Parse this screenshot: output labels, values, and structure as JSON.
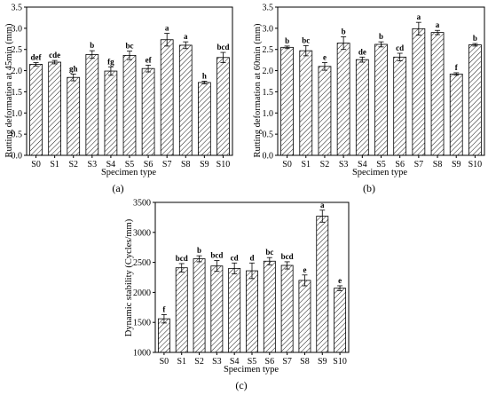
{
  "colors": {
    "bar_stroke": "#000000",
    "hatch": "#000000",
    "background": "#ffffff"
  },
  "chart_data": [
    {
      "type": "bar",
      "panel_label": "(a)",
      "xlabel": "Specimen type",
      "ylabel": "Rutting deformation at 45min (mm)",
      "ylim": [
        0,
        3.5
      ],
      "yticks": [
        "0.0",
        "0.5",
        "1.0",
        "1.5",
        "2.0",
        "2.5",
        "3.0",
        "3.5"
      ],
      "categories": [
        "S0",
        "S1",
        "S2",
        "S3",
        "S4",
        "S5",
        "S6",
        "S7",
        "S8",
        "S9",
        "S10"
      ],
      "values": [
        2.15,
        2.2,
        1.84,
        2.38,
        1.99,
        2.36,
        2.05,
        2.73,
        2.6,
        1.72,
        2.31
      ],
      "errors": [
        0.04,
        0.04,
        0.08,
        0.09,
        0.1,
        0.1,
        0.08,
        0.15,
        0.08,
        0.03,
        0.12
      ],
      "letters": [
        "def",
        "cde",
        "gh",
        "b",
        "fg",
        "bc",
        "ef",
        "a",
        "a",
        "h",
        "bcd"
      ],
      "hatch": "diagonal"
    },
    {
      "type": "bar",
      "panel_label": "(b)",
      "xlabel": "Specimen type",
      "ylabel": "Rutting deformation at 60min (mm)",
      "ylim": [
        0,
        3.5
      ],
      "yticks": [
        "0.0",
        "0.5",
        "1.0",
        "1.5",
        "2.0",
        "2.5",
        "3.0",
        "3.5"
      ],
      "categories": [
        "S0",
        "S1",
        "S2",
        "S3",
        "S4",
        "S5",
        "S6",
        "S7",
        "S8",
        "S9",
        "S10"
      ],
      "values": [
        2.55,
        2.47,
        2.1,
        2.65,
        2.26,
        2.62,
        2.32,
        2.99,
        2.9,
        1.92,
        2.61
      ],
      "errors": [
        0.03,
        0.12,
        0.09,
        0.15,
        0.06,
        0.06,
        0.09,
        0.15,
        0.05,
        0.03,
        0.03
      ],
      "letters": [
        "b",
        "bc",
        "e",
        "b",
        "de",
        "b",
        "cd",
        "a",
        "a",
        "f",
        "b"
      ],
      "hatch": "diagonal"
    },
    {
      "type": "bar",
      "panel_label": "(c)",
      "xlabel": "Specimen type",
      "ylabel": "Dynamic stability (Cycles/mm)",
      "ylim": [
        1000,
        3500
      ],
      "yticks": [
        "1000",
        "1500",
        "2000",
        "2500",
        "3000",
        "3500"
      ],
      "categories": [
        "S0",
        "S1",
        "S2",
        "S3",
        "S4",
        "S5",
        "S6",
        "S7",
        "S8",
        "S9",
        "S10"
      ],
      "values": [
        1560,
        2410,
        2560,
        2440,
        2400,
        2360,
        2520,
        2450,
        2200,
        3270,
        2070
      ],
      "errors": [
        70,
        70,
        50,
        90,
        90,
        130,
        60,
        60,
        90,
        100,
        40
      ],
      "letters": [
        "f",
        "bcd",
        "b",
        "bcd",
        "cd",
        "d",
        "bc",
        "bcd",
        "e",
        "a",
        "e"
      ],
      "hatch": "diagonal"
    }
  ]
}
